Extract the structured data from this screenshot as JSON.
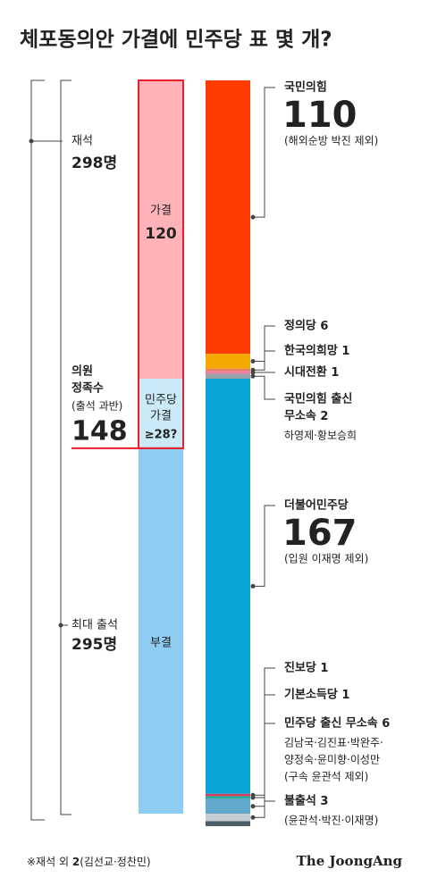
{
  "title": "체포동의안 가결에 민주당 표 몇 개?",
  "seated": {
    "label": "재석",
    "count": "298명"
  },
  "attendance": {
    "label": "최대 출석",
    "count": "295명"
  },
  "quorum": {
    "lines": [
      "의원",
      "정족수"
    ],
    "note": "(출석 과반)",
    "value": 148
  },
  "votes": [
    {
      "name": "가결",
      "value": 120,
      "color": "#ffb3b9"
    },
    {
      "name": [
        "민주당",
        "가결"
      ],
      "value": 28,
      "value_label": "≥28?",
      "color": "#c9eaf6"
    },
    {
      "name": "부결",
      "value": 147,
      "color": "#8ecdf3"
    }
  ],
  "parties": [
    {
      "name": "국민의힘",
      "value": 110,
      "note": "(해외순방 박진 제외)",
      "color": "#ff3c00"
    },
    {
      "name": "정의당",
      "value": 6,
      "color": "#f5a800"
    },
    {
      "name": "한국의희망",
      "value": 1,
      "color": "#e8806e"
    },
    {
      "name": "시대전환",
      "value": 1,
      "color": "#f07fa0"
    },
    {
      "name": [
        "국민의힘 출신",
        "무소속"
      ],
      "value": 2,
      "note": "하영제·황보승희",
      "color": "#9aa1a8"
    },
    {
      "name": "더불어민주당",
      "value": 167,
      "note": "(입원 이재명 제외)",
      "color": "#0aa5d8"
    },
    {
      "name": "진보당",
      "value": 1,
      "color": "#d04060"
    },
    {
      "name": "기본소득당",
      "value": 1,
      "color": "#20b0a0"
    },
    {
      "name": "민주당 출신 무소속",
      "value": 6,
      "note": [
        "김남국·김진표·박완주·",
        "양정숙·윤미향·이성만",
        "(구속 윤관석 제외)"
      ],
      "color": "#63a9cc"
    },
    {
      "name": "불출석",
      "value": 3,
      "note": "(윤관석·박진·이재명)",
      "color": "#c8cdd2"
    }
  ],
  "footnote": {
    "text": "※재석 외",
    "value": 2,
    "names": "(김선교·정찬민)",
    "color": "#4d5e69"
  },
  "source": "The JoongAng"
}
